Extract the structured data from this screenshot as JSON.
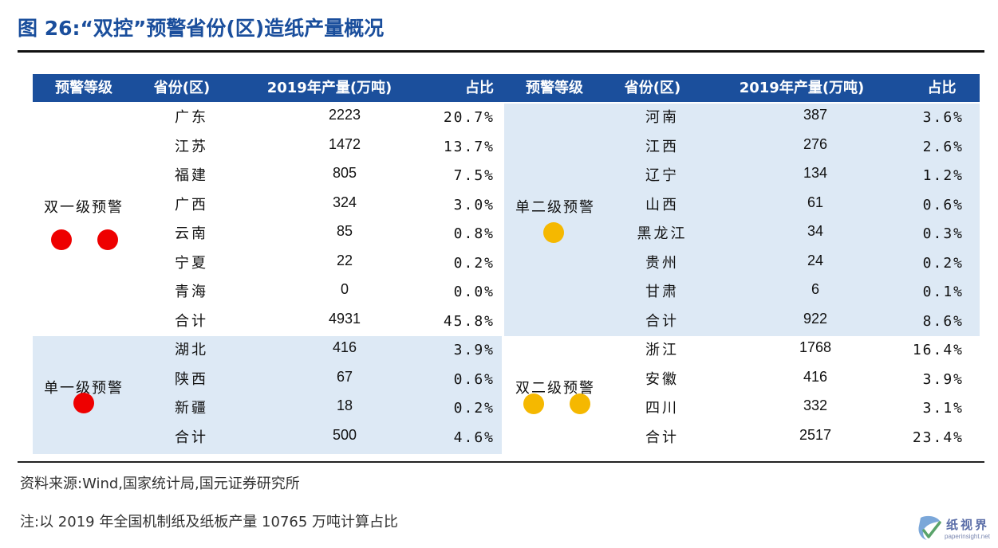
{
  "title": "图 26:“双控”预警省份(区)造纸产量概况",
  "colors": {
    "header_bg": "#1b4f9c",
    "shaded_bg": "#dde9f5",
    "title_color": "#1a4e9c",
    "red_dot": "#ee0000",
    "yellow_dot": "#f5b800"
  },
  "headers": [
    "预警等级",
    "省份(区)",
    "2019年产量(万吨)",
    "占比",
    "预警等级",
    "省份(区)",
    "2019年产量(万吨)",
    "占比"
  ],
  "groups": {
    "shuang_yi": {
      "label": "双一级预警",
      "dot_color": "red",
      "dots": 2,
      "rows": [
        {
          "province": "广东",
          "output": "2223",
          "share": "20.7%"
        },
        {
          "province": "江苏",
          "output": "1472",
          "share": "13.7%"
        },
        {
          "province": "福建",
          "output": "805",
          "share": "7.5%"
        },
        {
          "province": "广西",
          "output": "324",
          "share": "3.0%"
        },
        {
          "province": "云南",
          "output": "85",
          "share": "0.8%"
        },
        {
          "province": "宁夏",
          "output": "22",
          "share": "0.2%"
        },
        {
          "province": "青海",
          "output": "0",
          "share": "0.0%"
        },
        {
          "province": "合计",
          "output": "4931",
          "share": "45.8%"
        }
      ]
    },
    "dan_yi": {
      "label": "单一级预警",
      "dot_color": "red",
      "dots": 1,
      "rows": [
        {
          "province": "湖北",
          "output": "416",
          "share": "3.9%"
        },
        {
          "province": "陕西",
          "output": "67",
          "share": "0.6%"
        },
        {
          "province": "新疆",
          "output": "18",
          "share": "0.2%"
        },
        {
          "province": "合计",
          "output": "500",
          "share": "4.6%"
        }
      ]
    },
    "dan_er": {
      "label": "单二级预警",
      "dot_color": "yellow",
      "dots": 1,
      "rows": [
        {
          "province": "河南",
          "output": "387",
          "share": "3.6%"
        },
        {
          "province": "江西",
          "output": "276",
          "share": "2.6%"
        },
        {
          "province": "辽宁",
          "output": "134",
          "share": "1.2%"
        },
        {
          "province": "山西",
          "output": "61",
          "share": "0.6%"
        },
        {
          "province": "黑龙江",
          "output": "34",
          "share": "0.3%"
        },
        {
          "province": "贵州",
          "output": "24",
          "share": "0.2%"
        },
        {
          "province": "甘肃",
          "output": "6",
          "share": "0.1%"
        },
        {
          "province": "合计",
          "output": "922",
          "share": "8.6%"
        }
      ]
    },
    "shuang_er": {
      "label": "双二级预警",
      "dot_color": "yellow",
      "dots": 2,
      "rows": [
        {
          "province": "浙江",
          "output": "1768",
          "share": "16.4%"
        },
        {
          "province": "安徽",
          "output": "416",
          "share": "3.9%"
        },
        {
          "province": "四川",
          "output": "332",
          "share": "3.1%"
        },
        {
          "province": "合计",
          "output": "2517",
          "share": "23.4%"
        }
      ]
    }
  },
  "source": "资料来源:Wind,国家统计局,国元证券研究所",
  "footnote": "注:以 2019 年全国机制纸及纸板产量 10765 万吨计算占比",
  "watermark": {
    "name": "纸视界",
    "url": "paperinsight.net"
  }
}
